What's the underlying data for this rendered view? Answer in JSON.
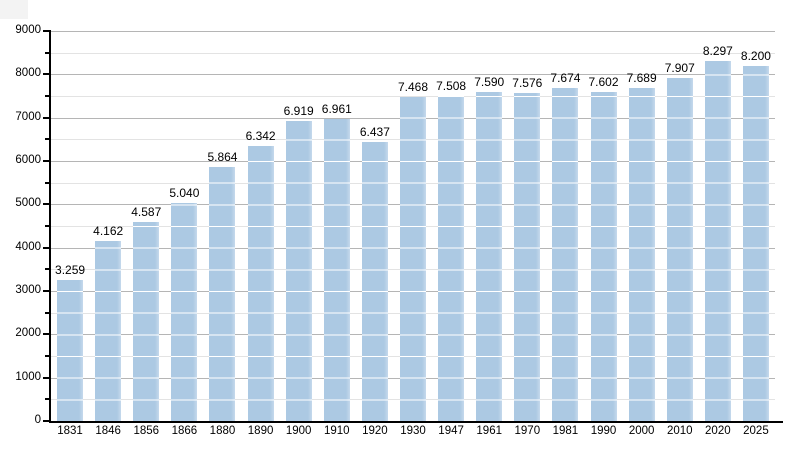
{
  "chart_data": {
    "type": "bar",
    "title": "",
    "xlabel": "",
    "ylabel": "",
    "categories": [
      "1831",
      "1846",
      "1856",
      "1866",
      "1880",
      "1890",
      "1900",
      "1910",
      "1920",
      "1930",
      "1947",
      "1961",
      "1970",
      "1981",
      "1990",
      "2000",
      "2010",
      "2020",
      "2025"
    ],
    "values": [
      3259,
      4162,
      4587,
      5040,
      5864,
      6342,
      6919,
      6961,
      6437,
      7468,
      7508,
      7590,
      7576,
      7674,
      7602,
      7689,
      7907,
      8297,
      8200
    ],
    "value_labels": [
      "3.259",
      "4.162",
      "4.587",
      "5.040",
      "5.864",
      "6.342",
      "6.919",
      "6.961",
      "6.437",
      "7.468",
      "7.508",
      "7.590",
      "7.576",
      "7.674",
      "7.602",
      "7.689",
      "7.907",
      "8.297",
      "8.200"
    ],
    "ylim": [
      0,
      9000
    ],
    "y_major_step": 1000,
    "y_minor_step": 500,
    "y_tick_labels": [
      "0",
      "1000",
      "2000",
      "3000",
      "4000",
      "5000",
      "6000",
      "7000",
      "8000",
      "9000"
    ],
    "grid": true,
    "legend_position": "none",
    "colors": {
      "bar_fill": "#acc9e3",
      "bar_fill_edge": "#c5d9ec",
      "bar_grid_overlay": "#ffffff",
      "gridline_major": "#b5b5b5",
      "gridline_minor": "#e3e3e3",
      "axis": "#000000",
      "text": "#000000",
      "background": "#ffffff",
      "corner_artifact": "#f3f3f3"
    }
  }
}
